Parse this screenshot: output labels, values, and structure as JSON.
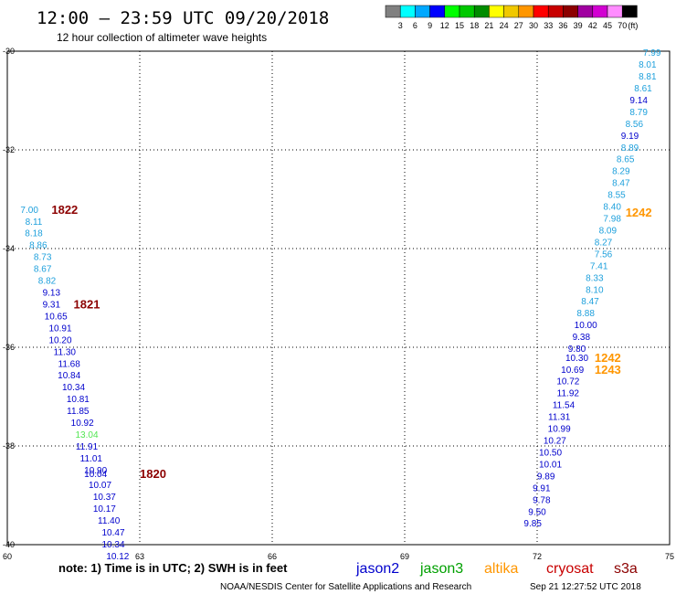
{
  "header": {
    "title": "12:00 – 23:59 UTC 09/20/2018",
    "subtitle": "12 hour collection of altimeter wave heights"
  },
  "legend": {
    "unit": "(ft)",
    "bins": [
      {
        "label": "3",
        "color": "#808080"
      },
      {
        "label": "6",
        "color": "#00ffff"
      },
      {
        "label": "9",
        "color": "#00a8ff"
      },
      {
        "label": "12",
        "color": "#0000ff"
      },
      {
        "label": "15",
        "color": "#00ff00"
      },
      {
        "label": "18",
        "color": "#00c800"
      },
      {
        "label": "21",
        "color": "#008c00"
      },
      {
        "label": "24",
        "color": "#ffff00"
      },
      {
        "label": "27",
        "color": "#f0c800"
      },
      {
        "label": "30",
        "color": "#ff9600"
      },
      {
        "label": "33",
        "color": "#ff0000"
      },
      {
        "label": "36",
        "color": "#c80000"
      },
      {
        "label": "39",
        "color": "#8c0000"
      },
      {
        "label": "42",
        "color": "#a000a0"
      },
      {
        "label": "45",
        "color": "#d200d2"
      },
      {
        "label": "70",
        "color": "#ff8cff"
      },
      {
        "label": "",
        "color": "#000000"
      }
    ]
  },
  "footer": {
    "note": "note:  1) Time is in UTC;  2) SWH is in feet",
    "satellites": [
      {
        "name": "jason2",
        "color": "#0000cc"
      },
      {
        "name": "jason3",
        "color": "#00a000"
      },
      {
        "name": "altika",
        "color": "#ff9600"
      },
      {
        "name": "cryosat",
        "color": "#c80000"
      },
      {
        "name": "s3a",
        "color": "#8c0000"
      }
    ],
    "credit": "NOAA/NESDIS Center for Satellite Applications and Research",
    "timestamp": "Sep 21 12:27:52 UTC 2018"
  },
  "chart_data": {
    "type": "scatter",
    "xlim": [
      60,
      75
    ],
    "ylim": [
      -40,
      -30
    ],
    "xticks": [
      60,
      63,
      66,
      69,
      72,
      75
    ],
    "yticks": [
      -30,
      -32,
      -34,
      -36,
      -38,
      -40
    ],
    "grid": true,
    "series": [
      {
        "name": "jason2",
        "points": [
          {
            "x": 60.5,
            "y": -33.2,
            "v": "7.00",
            "c": "#1ea0dc"
          },
          {
            "x": 60.6,
            "y": -33.44,
            "v": "8.11",
            "c": "#1ea0dc"
          },
          {
            "x": 60.6,
            "y": -33.68,
            "v": "8.18",
            "c": "#1ea0dc"
          },
          {
            "x": 60.7,
            "y": -33.92,
            "v": "8.86",
            "c": "#1ea0dc"
          },
          {
            "x": 60.8,
            "y": -34.16,
            "v": "8.73",
            "c": "#1ea0dc"
          },
          {
            "x": 60.8,
            "y": -34.4,
            "v": "8.67",
            "c": "#1ea0dc"
          },
          {
            "x": 60.9,
            "y": -34.64,
            "v": "8.82",
            "c": "#1ea0dc"
          },
          {
            "x": 61.0,
            "y": -34.88,
            "v": "9.13",
            "c": "#0000cc"
          },
          {
            "x": 61.0,
            "y": -35.12,
            "v": "9.31",
            "c": "#0000cc"
          },
          {
            "x": 61.1,
            "y": -35.36,
            "v": "10.65",
            "c": "#0000cc"
          },
          {
            "x": 61.2,
            "y": -35.6,
            "v": "10.91",
            "c": "#0000cc"
          },
          {
            "x": 61.2,
            "y": -35.84,
            "v": "10.20",
            "c": "#0000cc"
          },
          {
            "x": 61.3,
            "y": -36.08,
            "v": "11.30",
            "c": "#0000cc"
          },
          {
            "x": 61.4,
            "y": -36.32,
            "v": "11.68",
            "c": "#0000cc"
          },
          {
            "x": 61.4,
            "y": -36.56,
            "v": "10.84",
            "c": "#0000cc"
          },
          {
            "x": 61.5,
            "y": -36.8,
            "v": "10.34",
            "c": "#0000cc"
          },
          {
            "x": 61.6,
            "y": -37.04,
            "v": "10.81",
            "c": "#0000cc"
          },
          {
            "x": 61.6,
            "y": -37.28,
            "v": "11.85",
            "c": "#0000cc"
          },
          {
            "x": 61.7,
            "y": -37.52,
            "v": "10.92",
            "c": "#0000cc"
          },
          {
            "x": 61.8,
            "y": -37.76,
            "v": "13.04",
            "c": "#50e650"
          },
          {
            "x": 61.8,
            "y": -38.0,
            "v": "11.91",
            "c": "#0000cc"
          },
          {
            "x": 61.9,
            "y": -38.24,
            "v": "11.01",
            "c": "#0000cc"
          },
          {
            "x": 62.0,
            "y": -38.48,
            "v": "10.90",
            "c": "#0000cc"
          },
          {
            "x": 62.0,
            "y": -38.56,
            "v": "10.04",
            "c": "#0000cc"
          },
          {
            "x": 62.1,
            "y": -38.78,
            "v": "10.07",
            "c": "#0000cc"
          },
          {
            "x": 62.2,
            "y": -39.02,
            "v": "10.37",
            "c": "#0000cc"
          },
          {
            "x": 62.2,
            "y": -39.26,
            "v": "10.17",
            "c": "#0000cc"
          },
          {
            "x": 62.3,
            "y": -39.5,
            "v": "11.40",
            "c": "#0000cc"
          },
          {
            "x": 62.4,
            "y": -39.74,
            "v": "10.47",
            "c": "#0000cc"
          },
          {
            "x": 62.4,
            "y": -39.98,
            "v": "10.34",
            "c": "#0000cc"
          },
          {
            "x": 62.5,
            "y": -40.22,
            "v": "10.12",
            "c": "#0000cc"
          },
          {
            "x": 74.6,
            "y": -30.02,
            "v": "7.99",
            "c": "#1ea0dc"
          },
          {
            "x": 74.5,
            "y": -30.26,
            "v": "8.01",
            "c": "#1ea0dc"
          },
          {
            "x": 74.5,
            "y": -30.5,
            "v": "8.81",
            "c": "#1ea0dc"
          },
          {
            "x": 74.4,
            "y": -30.74,
            "v": "8.61",
            "c": "#1ea0dc"
          },
          {
            "x": 74.3,
            "y": -30.98,
            "v": "9.14",
            "c": "#0000cc"
          },
          {
            "x": 74.3,
            "y": -31.22,
            "v": "8.79",
            "c": "#1ea0dc"
          },
          {
            "x": 74.2,
            "y": -31.46,
            "v": "8.56",
            "c": "#1ea0dc"
          },
          {
            "x": 74.1,
            "y": -31.7,
            "v": "9.19",
            "c": "#0000cc"
          },
          {
            "x": 74.1,
            "y": -31.94,
            "v": "8.89",
            "c": "#1ea0dc"
          },
          {
            "x": 74.0,
            "y": -32.18,
            "v": "8.65",
            "c": "#1ea0dc"
          },
          {
            "x": 73.9,
            "y": -32.42,
            "v": "8.29",
            "c": "#1ea0dc"
          },
          {
            "x": 73.9,
            "y": -32.66,
            "v": "8.47",
            "c": "#1ea0dc"
          },
          {
            "x": 73.8,
            "y": -32.9,
            "v": "8.55",
            "c": "#1ea0dc"
          },
          {
            "x": 73.7,
            "y": -33.14,
            "v": "8.40",
            "c": "#1ea0dc"
          },
          {
            "x": 73.7,
            "y": -33.38,
            "v": "7.98",
            "c": "#1ea0dc"
          },
          {
            "x": 73.6,
            "y": -33.62,
            "v": "8.09",
            "c": "#1ea0dc"
          },
          {
            "x": 73.5,
            "y": -33.86,
            "v": "8.27",
            "c": "#1ea0dc"
          },
          {
            "x": 73.5,
            "y": -34.1,
            "v": "7.56",
            "c": "#1ea0dc"
          },
          {
            "x": 73.4,
            "y": -34.34,
            "v": "7.41",
            "c": "#1ea0dc"
          },
          {
            "x": 73.3,
            "y": -34.58,
            "v": "8.33",
            "c": "#1ea0dc"
          },
          {
            "x": 73.3,
            "y": -34.82,
            "v": "8.10",
            "c": "#1ea0dc"
          },
          {
            "x": 73.2,
            "y": -35.06,
            "v": "8.47",
            "c": "#1ea0dc"
          },
          {
            "x": 73.1,
            "y": -35.3,
            "v": "8.88",
            "c": "#1ea0dc"
          },
          {
            "x": 73.1,
            "y": -35.54,
            "v": "10.00",
            "c": "#0000cc"
          },
          {
            "x": 73.0,
            "y": -35.78,
            "v": "9.38",
            "c": "#0000cc"
          },
          {
            "x": 72.9,
            "y": -36.02,
            "v": "9.80",
            "c": "#0000cc"
          },
          {
            "x": 72.9,
            "y": -36.2,
            "v": "10.30",
            "c": "#0000cc"
          },
          {
            "x": 72.8,
            "y": -36.44,
            "v": "10.69",
            "c": "#0000cc"
          },
          {
            "x": 72.7,
            "y": -36.68,
            "v": "10.72",
            "c": "#0000cc"
          },
          {
            "x": 72.7,
            "y": -36.92,
            "v": "11.92",
            "c": "#0000cc"
          },
          {
            "x": 72.6,
            "y": -37.16,
            "v": "11.54",
            "c": "#0000cc"
          },
          {
            "x": 72.5,
            "y": -37.4,
            "v": "11.31",
            "c": "#0000cc"
          },
          {
            "x": 72.5,
            "y": -37.64,
            "v": "10.99",
            "c": "#0000cc"
          },
          {
            "x": 72.4,
            "y": -37.88,
            "v": "10.27",
            "c": "#0000cc"
          },
          {
            "x": 72.3,
            "y": -38.12,
            "v": "10.50",
            "c": "#0000cc"
          },
          {
            "x": 72.3,
            "y": -38.36,
            "v": "10.01",
            "c": "#0000cc"
          },
          {
            "x": 72.2,
            "y": -38.6,
            "v": "9.89",
            "c": "#0000cc"
          },
          {
            "x": 72.1,
            "y": -38.84,
            "v": "9.91",
            "c": "#0000cc"
          },
          {
            "x": 72.1,
            "y": -39.08,
            "v": "9.78",
            "c": "#0000cc"
          },
          {
            "x": 72.0,
            "y": -39.32,
            "v": "9.50",
            "c": "#0000cc"
          },
          {
            "x": 71.9,
            "y": -39.56,
            "v": "9.85",
            "c": "#0000cc"
          }
        ]
      }
    ],
    "time_labels": [
      {
        "x": 61.3,
        "y": -33.2,
        "text": "1822",
        "color": "#8c0000"
      },
      {
        "x": 61.8,
        "y": -35.12,
        "text": "1821",
        "color": "#8c0000"
      },
      {
        "x": 63.3,
        "y": -38.56,
        "text": "1820",
        "color": "#8c0000"
      },
      {
        "x": 74.3,
        "y": -33.26,
        "text": "1242",
        "color": "#ff9600"
      },
      {
        "x": 73.6,
        "y": -36.2,
        "text": "1242",
        "color": "#ff9600"
      },
      {
        "x": 73.6,
        "y": -36.44,
        "text": "1243",
        "color": "#ff9600"
      }
    ]
  }
}
